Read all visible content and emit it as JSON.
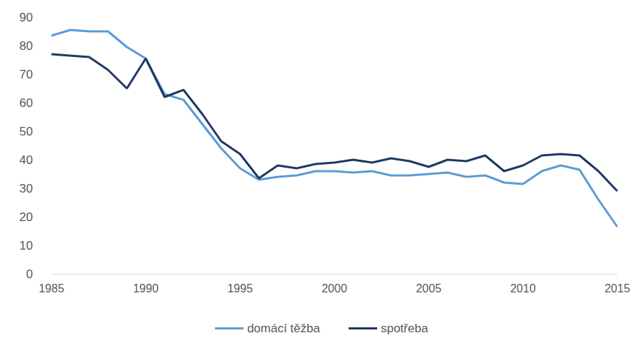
{
  "chart_data": {
    "type": "line",
    "x": [
      1985,
      1986,
      1987,
      1988,
      1989,
      1990,
      1991,
      1992,
      1993,
      1994,
      1995,
      1996,
      1997,
      1998,
      1999,
      2000,
      2001,
      2002,
      2003,
      2004,
      2005,
      2006,
      2007,
      2008,
      2009,
      2010,
      2011,
      2012,
      2013,
      2014,
      2015
    ],
    "series": [
      {
        "name": "domácí těžba",
        "color": "#5b9bd5",
        "values": [
          83.5,
          85.5,
          85,
          85,
          79.5,
          75.5,
          63,
          61,
          52.5,
          44,
          37,
          33,
          34,
          34.5,
          36,
          36,
          35.5,
          36,
          34.5,
          34.5,
          35,
          35.5,
          34,
          34.5,
          32,
          31.5,
          36,
          38,
          36.5,
          26,
          16.5
        ]
      },
      {
        "name": "spotřeba",
        "color": "#203864",
        "values": [
          77,
          76.5,
          76,
          71.5,
          65,
          75.5,
          62,
          64.5,
          56,
          46.5,
          42,
          33.5,
          38,
          37,
          38.5,
          39,
          40,
          39,
          40.5,
          39.5,
          37.5,
          40,
          39.5,
          41.5,
          36,
          38,
          41.5,
          42,
          41.5,
          36,
          29
        ]
      }
    ],
    "xlim": [
      1985,
      2015
    ],
    "xticks": [
      1985,
      1990,
      1995,
      2000,
      2005,
      2010,
      2015
    ],
    "ylim": [
      0,
      90
    ],
    "yticks": [
      0,
      10,
      20,
      30,
      40,
      50,
      60,
      70,
      80,
      90
    ],
    "grid": false,
    "legend": "bottom"
  }
}
